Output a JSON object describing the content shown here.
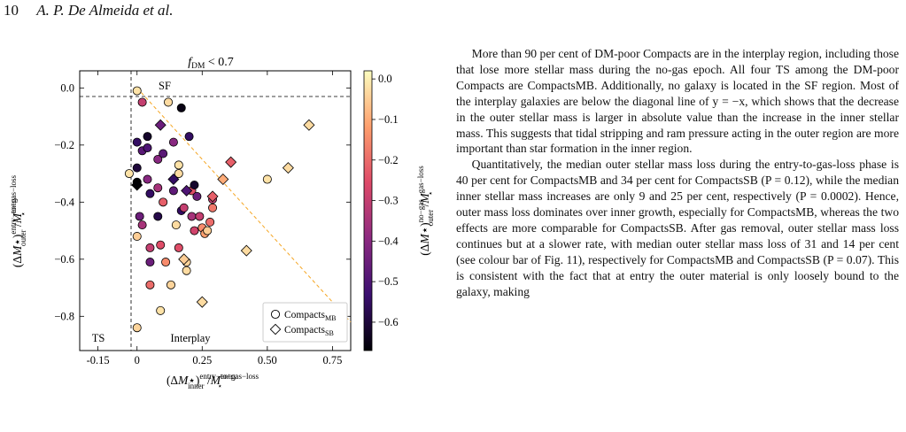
{
  "header": {
    "page_number": "10",
    "authors": "A. P. De Almeida et al."
  },
  "figure": {
    "title": "f_DM < 0.7",
    "region_labels": {
      "sf": "SF",
      "ts": "TS",
      "interplay": "Interplay"
    },
    "legend": {
      "mb": "CompactsMB",
      "sb": "CompactsSB"
    },
    "colorbar": {
      "ticks": [
        "0.0",
        "−0.1",
        "−0.2",
        "−0.3",
        "−0.4",
        "−0.5",
        "−0.6"
      ],
      "range": [
        -0.67,
        0.02
      ]
    },
    "x_ticks": [
      "-0.15",
      "0",
      "0.25",
      "0.50",
      "0.75"
    ],
    "y_ticks": [
      "0.0",
      "−0.2",
      "−0.4",
      "−0.6",
      "−0.8"
    ]
  },
  "chart_data": {
    "type": "scatter",
    "title": "f_DM < 0.7",
    "xlabel": "(ΔM⋆)inner entry−to−gas−loss / M⋆entry",
    "ylabel": "(ΔM⋆)outer entry−to−gas−loss / M⋆entry",
    "colorbar_label": "(ΔM⋆)outer no−gas / M⋆gas−loss",
    "xlim": [
      -0.22,
      0.82
    ],
    "ylim": [
      -0.92,
      0.06
    ],
    "reference_lines": [
      "x = 0",
      "y = 0",
      "y = −x"
    ],
    "series": [
      {
        "name": "CompactsMB",
        "marker": "circle",
        "points": [
          {
            "x": 0.0,
            "y": -0.01,
            "c": -0.02
          },
          {
            "x": -0.03,
            "y": -0.3,
            "c": -0.02
          },
          {
            "x": 0.0,
            "y": -0.33,
            "c": -0.67
          },
          {
            "x": 0.0,
            "y": -0.52,
            "c": -0.05
          },
          {
            "x": 0.0,
            "y": -0.84,
            "c": -0.04
          },
          {
            "x": 0.0,
            "y": -0.19,
            "c": -0.55
          },
          {
            "x": 0.0,
            "y": -0.28,
            "c": -0.6
          },
          {
            "x": 0.02,
            "y": -0.05,
            "c": -0.3
          },
          {
            "x": 0.01,
            "y": -0.45,
            "c": -0.45
          },
          {
            "x": 0.02,
            "y": -0.22,
            "c": -0.48
          },
          {
            "x": 0.02,
            "y": -0.48,
            "c": -0.35
          },
          {
            "x": 0.04,
            "y": -0.17,
            "c": -0.62
          },
          {
            "x": 0.04,
            "y": -0.21,
            "c": -0.5
          },
          {
            "x": 0.04,
            "y": -0.32,
            "c": -0.4
          },
          {
            "x": 0.05,
            "y": -0.37,
            "c": -0.55
          },
          {
            "x": 0.05,
            "y": -0.56,
            "c": -0.3
          },
          {
            "x": 0.05,
            "y": -0.61,
            "c": -0.45
          },
          {
            "x": 0.05,
            "y": -0.69,
            "c": -0.2
          },
          {
            "x": 0.08,
            "y": -0.25,
            "c": -0.4
          },
          {
            "x": 0.08,
            "y": -0.35,
            "c": -0.35
          },
          {
            "x": 0.08,
            "y": -0.45,
            "c": -0.58
          },
          {
            "x": 0.09,
            "y": -0.55,
            "c": -0.25
          },
          {
            "x": 0.09,
            "y": -0.78,
            "c": -0.02
          },
          {
            "x": 0.1,
            "y": -0.23,
            "c": -0.48
          },
          {
            "x": 0.1,
            "y": -0.4,
            "c": -0.22
          },
          {
            "x": 0.11,
            "y": -0.61,
            "c": -0.15
          },
          {
            "x": 0.12,
            "y": -0.05,
            "c": -0.03
          },
          {
            "x": 0.13,
            "y": -0.69,
            "c": -0.04
          },
          {
            "x": 0.14,
            "y": -0.19,
            "c": -0.4
          },
          {
            "x": 0.14,
            "y": -0.36,
            "c": -0.47
          },
          {
            "x": 0.15,
            "y": -0.48,
            "c": -0.03
          },
          {
            "x": 0.16,
            "y": -0.27,
            "c": -0.02
          },
          {
            "x": 0.16,
            "y": -0.3,
            "c": -0.03
          },
          {
            "x": 0.16,
            "y": -0.56,
            "c": -0.25
          },
          {
            "x": 0.17,
            "y": -0.07,
            "c": -0.65
          },
          {
            "x": 0.17,
            "y": -0.43,
            "c": -0.55
          },
          {
            "x": 0.18,
            "y": -0.42,
            "c": -0.3
          },
          {
            "x": 0.19,
            "y": -0.61,
            "c": -0.04
          },
          {
            "x": 0.19,
            "y": -0.64,
            "c": -0.03
          },
          {
            "x": 0.2,
            "y": -0.17,
            "c": -0.55
          },
          {
            "x": 0.21,
            "y": -0.36,
            "c": -0.25
          },
          {
            "x": 0.21,
            "y": -0.45,
            "c": -0.35
          },
          {
            "x": 0.22,
            "y": -0.34,
            "c": -0.62
          },
          {
            "x": 0.22,
            "y": -0.5,
            "c": -0.28
          },
          {
            "x": 0.23,
            "y": -0.38,
            "c": -0.45
          },
          {
            "x": 0.24,
            "y": -0.45,
            "c": -0.3
          },
          {
            "x": 0.25,
            "y": -0.49,
            "c": -0.15
          },
          {
            "x": 0.26,
            "y": -0.51,
            "c": -0.12
          },
          {
            "x": 0.27,
            "y": -0.5,
            "c": -0.05
          },
          {
            "x": 0.28,
            "y": -0.47,
            "c": -0.2
          },
          {
            "x": 0.29,
            "y": -0.42,
            "c": -0.18
          },
          {
            "x": 0.29,
            "y": -0.39,
            "c": -0.3
          },
          {
            "x": 0.5,
            "y": -0.32,
            "c": -0.02
          }
        ]
      },
      {
        "name": "CompactsSB",
        "marker": "diamond",
        "points": [
          {
            "x": 0.0,
            "y": -0.34,
            "c": -0.67
          },
          {
            "x": 0.09,
            "y": -0.13,
            "c": -0.45
          },
          {
            "x": 0.14,
            "y": -0.32,
            "c": -0.55
          },
          {
            "x": 0.19,
            "y": -0.36,
            "c": -0.5
          },
          {
            "x": 0.18,
            "y": -0.6,
            "c": -0.05
          },
          {
            "x": 0.25,
            "y": -0.75,
            "c": -0.03
          },
          {
            "x": 0.29,
            "y": -0.38,
            "c": -0.22
          },
          {
            "x": 0.33,
            "y": -0.32,
            "c": -0.1
          },
          {
            "x": 0.36,
            "y": -0.26,
            "c": -0.22
          },
          {
            "x": 0.42,
            "y": -0.57,
            "c": -0.03
          },
          {
            "x": 0.58,
            "y": -0.28,
            "c": -0.03
          },
          {
            "x": 0.66,
            "y": -0.13,
            "c": -0.03
          }
        ]
      }
    ]
  },
  "text": {
    "p1": "More than 90 per cent of DM-poor Compacts are in the interplay region, including those that lose more stellar mass during the no-gas epoch. All four TS among the DM-poor Compacts are CompactsMB. Additionally, no galaxy is located in the SF region. Most of the interplay galaxies are below the diagonal line of y = −x, which shows that the decrease in the outer stellar mass is larger in absolute value than the increase in the inner stellar mass. This suggests that tidal stripping and ram pressure acting in the outer region are more important than star formation in the inner region.",
    "p2": "Quantitatively, the median outer stellar mass loss during the entry-to-gas-loss phase is 40 per cent for CompactsMB and 34 per cent for CompactsSB (P = 0.12), while the median inner stellar mass increases are only 9 and 25 per cent, respectively (P = 0.0002). Hence, outer mass loss dominates over inner growth, especially for CompactsMB, whereas the two effects are more comparable for CompactsSB. After gas removal, outer stellar mass loss continues but at a slower rate, with median outer stellar mass loss of 31 and 14 per cent (see colour bar of Fig. 11), respectively for CompactsMB and CompactsSB (P = 0.07). This is consistent with the fact that at entry the outer material is only loosely bound to the galaxy, making"
  }
}
